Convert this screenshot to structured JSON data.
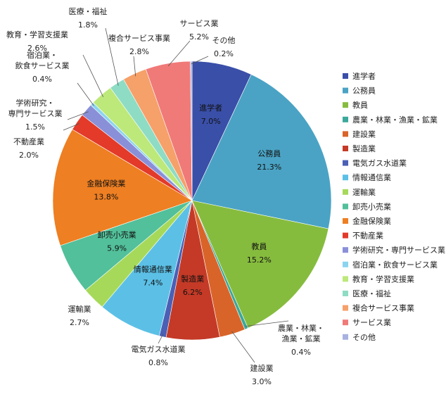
{
  "chart_data": {
    "type": "pie",
    "legend_position": "right",
    "slices": [
      {
        "label": "進学者",
        "value": 7.0,
        "display": "7.0%",
        "color": "#3a4fa8"
      },
      {
        "label": "公務員",
        "value": 21.3,
        "display": "21.3%",
        "color": "#4aa3c4"
      },
      {
        "label": "教員",
        "value": 15.2,
        "display": "15.2%",
        "color": "#86bc3e"
      },
      {
        "label": "農業・林業・漁業・鉱業",
        "display_label": "農業・林業・漁業・鉱業",
        "value": 0.4,
        "display": "0.4%",
        "color": "#3aa89a"
      },
      {
        "label": "建設業",
        "value": 3.0,
        "display": "3.0%",
        "color": "#d9642a"
      },
      {
        "label": "製造業",
        "value": 6.2,
        "display": "6.2%",
        "color": "#c43a27"
      },
      {
        "label": "電気ガス水道業",
        "value": 0.8,
        "display": "0.8%",
        "color": "#4b5fb5"
      },
      {
        "label": "情報通信業",
        "value": 7.4,
        "display": "7.4%",
        "color": "#5cc0e6"
      },
      {
        "label": "運輸業",
        "value": 2.7,
        "display": "2.7%",
        "color": "#a6d95a"
      },
      {
        "label": "卸売小売業",
        "value": 5.9,
        "display": "5.9%",
        "color": "#52c09a"
      },
      {
        "label": "金融保険業",
        "value": 13.8,
        "display": "13.8%",
        "color": "#ee7f22"
      },
      {
        "label": "不動産業",
        "value": 2.0,
        "display": "2.0%",
        "color": "#e33a2a"
      },
      {
        "label": "学術研究・専門サービス業",
        "value": 1.5,
        "display": "1.5%",
        "color": "#8a90d8"
      },
      {
        "label": "宿泊業・飲食サービス業",
        "value": 0.4,
        "display": "0.4%",
        "color": "#8ad4ee"
      },
      {
        "label": "教育・学習支援業",
        "value": 2.6,
        "display": "2.6%",
        "color": "#bde87a"
      },
      {
        "label": "医療・福祉",
        "value": 1.8,
        "display": "1.8%",
        "color": "#8edcc4"
      },
      {
        "label": "複合サービス事業",
        "value": 2.8,
        "display": "2.8%",
        "color": "#f6a06a"
      },
      {
        "label": "サービス業",
        "value": 5.2,
        "display": "5.2%",
        "color": "#f07a78"
      },
      {
        "label": "その他",
        "value": 0.2,
        "display": "0.2%",
        "color": "#a8b2e0"
      }
    ]
  }
}
